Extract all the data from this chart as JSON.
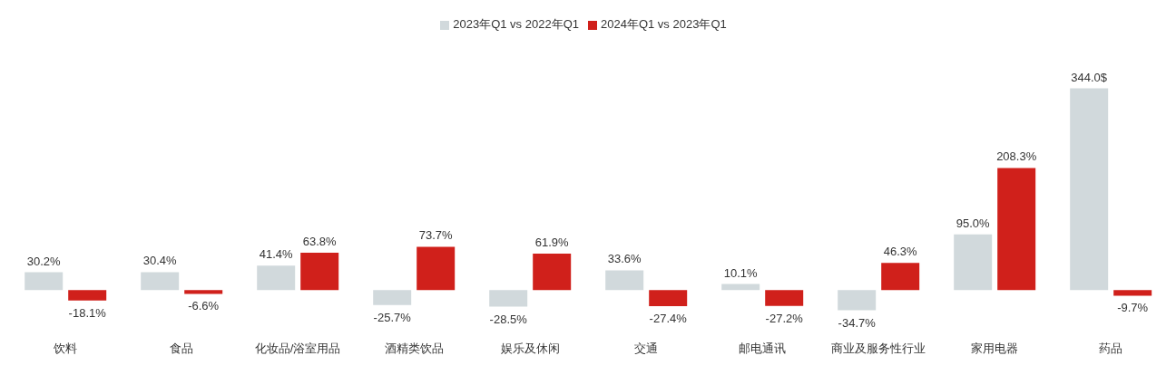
{
  "chart_data": {
    "type": "bar",
    "categories": [
      "饮料",
      "食品",
      "化妆品/浴室用品",
      "酒精类饮品",
      "娱乐及休闲",
      "交通",
      "邮电通讯",
      "商业及服务性行业",
      "家用电器",
      "药品"
    ],
    "series": [
      {
        "name": "2023年Q1 vs 2022年Q1",
        "color": "#d1d9dc",
        "values": [
          30.2,
          30.4,
          41.4,
          -25.7,
          -28.5,
          33.6,
          10.1,
          -34.7,
          95.0,
          344.0
        ],
        "value_labels": [
          "30.2%",
          "30.4%",
          "41.4%",
          "-25.7%",
          "-28.5%",
          "33.6%",
          "10.1%",
          "-34.7%",
          "95.0%",
          "344.0$"
        ]
      },
      {
        "name": "2024年Q1 vs 2023年Q1",
        "color": "#d0201b",
        "values": [
          -18.1,
          -6.6,
          63.8,
          73.7,
          61.9,
          -27.4,
          -27.2,
          46.3,
          208.3,
          -9.7
        ],
        "value_labels": [
          "-18.1%",
          "-6.6%",
          "63.8%",
          "73.7%",
          "61.9%",
          "-27.4%",
          "-27.2%",
          "46.3%",
          "208.3%",
          "-9.7%"
        ]
      }
    ],
    "legend": "top"
  }
}
